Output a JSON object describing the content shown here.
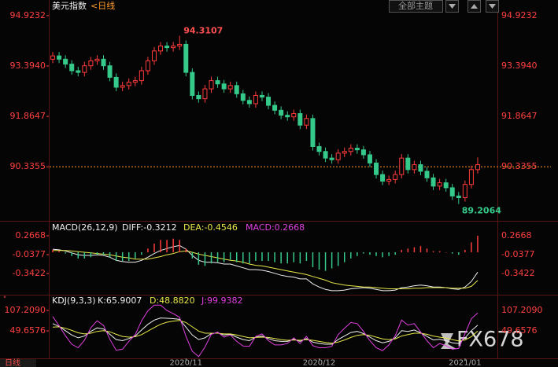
{
  "chart_data": [
    {
      "type": "candlestick",
      "title": "美元指数",
      "subtitle": "<日线",
      "open": [
        93.6,
        93.7,
        93.6,
        93.45,
        93.25,
        93.2,
        93.4,
        93.55,
        93.6,
        93.4,
        93.05,
        92.75,
        92.8,
        92.9,
        92.95,
        93.25,
        93.55,
        93.85,
        94.0,
        93.95,
        94.0,
        94.05,
        93.2,
        92.5,
        92.4,
        92.7,
        92.95,
        92.85,
        92.7,
        92.8,
        92.55,
        92.35,
        92.25,
        92.5,
        92.45,
        92.2,
        92.05,
        91.9,
        91.85,
        91.95,
        91.6,
        91.8,
        90.95,
        90.8,
        90.6,
        90.55,
        90.75,
        90.8,
        90.9,
        90.85,
        90.7,
        90.45,
        90.1,
        89.9,
        89.95,
        90.1,
        90.6,
        90.25,
        90.4,
        90.2,
        90.0,
        89.75,
        89.85,
        89.7,
        89.45,
        89.4,
        89.8,
        90.25
      ],
      "high": [
        93.82,
        93.82,
        93.72,
        93.57,
        93.37,
        93.52,
        93.67,
        93.72,
        93.72,
        93.52,
        93.17,
        92.92,
        93.02,
        93.07,
        93.37,
        93.67,
        93.97,
        94.12,
        94.12,
        94.12,
        94.3107,
        94.17,
        93.32,
        92.62,
        92.82,
        93.07,
        93.07,
        92.97,
        92.92,
        92.92,
        92.67,
        92.47,
        92.62,
        92.62,
        92.57,
        92.32,
        92.17,
        92.02,
        92.07,
        92.07,
        91.92,
        91.92,
        91.07,
        90.92,
        90.72,
        90.87,
        90.92,
        91.02,
        91.02,
        90.97,
        90.82,
        90.57,
        90.22,
        90.07,
        90.22,
        90.72,
        90.72,
        90.52,
        90.52,
        90.32,
        90.12,
        89.97,
        89.97,
        89.82,
        89.57,
        89.92,
        90.37,
        90.62
      ],
      "low": [
        93.48,
        93.48,
        93.33,
        93.13,
        93.08,
        93.08,
        93.28,
        93.43,
        93.28,
        92.93,
        92.63,
        92.63,
        92.68,
        92.78,
        92.83,
        93.13,
        93.43,
        93.73,
        93.83,
        93.83,
        93.88,
        93.08,
        92.38,
        92.28,
        92.28,
        92.58,
        92.73,
        92.58,
        92.58,
        92.43,
        92.23,
        92.13,
        92.13,
        92.33,
        92.08,
        91.93,
        91.78,
        91.73,
        91.73,
        91.48,
        91.48,
        90.83,
        90.68,
        90.48,
        90.43,
        90.43,
        90.63,
        90.68,
        90.73,
        90.58,
        90.33,
        89.98,
        89.78,
        89.78,
        89.83,
        89.98,
        90.13,
        90.13,
        90.08,
        89.88,
        89.63,
        89.63,
        89.58,
        89.33,
        89.2064,
        89.28,
        89.68,
        90.13
      ],
      "close": [
        93.7,
        93.6,
        93.45,
        93.25,
        93.2,
        93.4,
        93.55,
        93.6,
        93.4,
        93.05,
        92.75,
        92.8,
        92.9,
        92.95,
        93.25,
        93.55,
        93.85,
        94.0,
        93.95,
        94.0,
        94.05,
        93.2,
        92.5,
        92.4,
        92.7,
        92.95,
        92.85,
        92.7,
        92.8,
        92.55,
        92.35,
        92.25,
        92.5,
        92.45,
        92.2,
        92.05,
        91.9,
        91.85,
        91.95,
        91.6,
        91.8,
        90.95,
        90.8,
        90.6,
        90.55,
        90.75,
        90.8,
        90.9,
        90.85,
        90.7,
        90.45,
        90.1,
        89.9,
        89.95,
        90.1,
        90.6,
        90.25,
        90.4,
        90.2,
        90.0,
        89.75,
        89.85,
        89.7,
        89.45,
        89.4,
        89.8,
        90.25,
        90.4
      ],
      "up_color": "#ff3b3b",
      "down_color": "#35c98a",
      "xlim": [
        -0.5,
        67.5
      ],
      "ylim": [
        88.72,
        95.11
      ],
      "yticks": [
        94.9232,
        {
          "value": 93.394,
          "label": "93.3940"
        },
        91.8647,
        90.3355
      ]
    },
    {
      "type": "macd",
      "title": "MACD(26,12,9)",
      "series": [
        {
          "name": "DIFF:-0.3212",
          "color": "#f0f0f0",
          "values": [
            0.05,
            0.04,
            0.02,
            -0.01,
            -0.04,
            -0.05,
            -0.05,
            -0.04,
            -0.05,
            -0.08,
            -0.13,
            -0.15,
            -0.16,
            -0.16,
            -0.13,
            -0.08,
            -0.02,
            0.03,
            0.06,
            0.09,
            0.11,
            0.05,
            -0.05,
            -0.13,
            -0.16,
            -0.16,
            -0.17,
            -0.19,
            -0.19,
            -0.22,
            -0.25,
            -0.28,
            -0.28,
            -0.29,
            -0.31,
            -0.34,
            -0.37,
            -0.39,
            -0.4,
            -0.43,
            -0.43,
            -0.51,
            -0.56,
            -0.6,
            -0.62,
            -0.62,
            -0.61,
            -0.59,
            -0.58,
            -0.57,
            -0.58,
            -0.6,
            -0.62,
            -0.62,
            -0.61,
            -0.57,
            -0.56,
            -0.54,
            -0.53,
            -0.54,
            -0.56,
            -0.56,
            -0.57,
            -0.59,
            -0.6,
            -0.56,
            -0.47,
            -0.3212
          ]
        },
        {
          "name": "DEA:-0.4546",
          "color": "#e8e84a",
          "values": [
            0.03,
            0.03,
            0.03,
            0.02,
            0.01,
            0,
            -0.01,
            -0.02,
            -0.03,
            -0.04,
            -0.06,
            -0.08,
            -0.09,
            -0.11,
            -0.11,
            -0.11,
            -0.09,
            -0.07,
            -0.04,
            -0.02,
            0.01,
            0.02,
            0,
            -0.03,
            -0.05,
            -0.07,
            -0.09,
            -0.11,
            -0.13,
            -0.14,
            -0.16,
            -0.19,
            -0.21,
            -0.22,
            -0.24,
            -0.26,
            -0.28,
            -0.3,
            -0.32,
            -0.34,
            -0.36,
            -0.39,
            -0.42,
            -0.45,
            -0.49,
            -0.51,
            -0.53,
            -0.54,
            -0.55,
            -0.56,
            -0.56,
            -0.57,
            -0.58,
            -0.59,
            -0.59,
            -0.59,
            -0.59,
            -0.58,
            -0.58,
            -0.57,
            -0.57,
            -0.57,
            -0.57,
            -0.58,
            -0.58,
            -0.58,
            -0.55,
            -0.4546
          ]
        },
        {
          "name": "MACD:0.2668",
          "color": "#e040e0",
          "up_color": "#ff3b3b",
          "down_color": "#35c98a",
          "values": [
            0.04,
            0.02,
            -0.02,
            -0.06,
            -0.1,
            -0.1,
            -0.08,
            -0.04,
            -0.04,
            -0.08,
            -0.14,
            -0.14,
            -0.14,
            -0.1,
            -0.04,
            0.06,
            0.14,
            0.2,
            0.2,
            0.22,
            0.2,
            0.06,
            -0.1,
            -0.2,
            -0.22,
            -0.18,
            -0.16,
            -0.16,
            -0.12,
            -0.16,
            -0.18,
            -0.18,
            -0.14,
            -0.14,
            -0.14,
            -0.16,
            -0.18,
            -0.18,
            -0.16,
            -0.18,
            -0.14,
            -0.24,
            -0.28,
            -0.3,
            -0.26,
            -0.22,
            -0.16,
            -0.1,
            -0.06,
            -0.02,
            -0.04,
            -0.06,
            -0.08,
            -0.06,
            -0.04,
            0.04,
            0.06,
            0.08,
            0.1,
            0.06,
            0.02,
            0.02,
            0,
            -0.02,
            -0.04,
            0.04,
            0.16,
            0.2668
          ]
        }
      ],
      "xlim": [
        -0.5,
        67.5
      ],
      "ylim": [
        -0.672,
        0.457
      ],
      "yticks": [
        0.2668,
        -0.0377,
        -0.3422
      ]
    },
    {
      "type": "line",
      "title": "KDJ(9,3,3)",
      "series": [
        {
          "name": "K:65.9007",
          "color": "#f0f0f0",
          "values": [
            70,
            62,
            50,
            38,
            30,
            35,
            48,
            58,
            55,
            40,
            25,
            22,
            28,
            35,
            52,
            68,
            80,
            86,
            85,
            84,
            82,
            60,
            38,
            25,
            30,
            42,
            44,
            38,
            40,
            32,
            25,
            22,
            32,
            35,
            28,
            22,
            20,
            20,
            26,
            20,
            28,
            18,
            14,
            12,
            12,
            25,
            35,
            45,
            48,
            42,
            32,
            22,
            16,
            20,
            30,
            50,
            48,
            52,
            44,
            34,
            24,
            26,
            22,
            16,
            14,
            30,
            50,
            65.9007
          ]
        },
        {
          "name": "D:48.8820",
          "color": "#e8e84a",
          "values": [
            60,
            61,
            57,
            51,
            44,
            41,
            43,
            48,
            50,
            47,
            40,
            34,
            32,
            33,
            39,
            49,
            59,
            68,
            74,
            77,
            79,
            73,
            61,
            49,
            43,
            43,
            43,
            41,
            41,
            38,
            34,
            30,
            31,
            32,
            31,
            28,
            25,
            23,
            24,
            23,
            25,
            23,
            20,
            17,
            15,
            18,
            24,
            31,
            37,
            39,
            37,
            32,
            27,
            25,
            27,
            35,
            39,
            43,
            43,
            40,
            35,
            32,
            29,
            25,
            21,
            24,
            33,
            48.882
          ]
        },
        {
          "name": "J:99.9382",
          "color": "#e040e0",
          "values": [
            90,
            64,
            36,
            12,
            2,
            23,
            58,
            78,
            65,
            26,
            -5,
            -2,
            20,
            39,
            78,
            106,
            122,
            122,
            107,
            98,
            88,
            34,
            -8,
            -23,
            4,
            40,
            46,
            32,
            38,
            20,
            7,
            6,
            34,
            41,
            22,
            10,
            10,
            14,
            30,
            14,
            34,
            8,
            2,
            2,
            6,
            39,
            57,
            73,
            70,
            48,
            22,
            2,
            -6,
            10,
            36,
            80,
            66,
            70,
            46,
            22,
            2,
            14,
            8,
            -2,
            0,
            42,
            84,
            99.9382
          ]
        }
      ],
      "xlim": [
        -0.5,
        67.5
      ],
      "ylim": [
        -25.6,
        144.8
      ],
      "yticks": [
        {
          "value": 107.209,
          "label": "107.2090"
        },
        49.6576
      ],
      "xticks": [
        {
          "value": 21,
          "label": "2020/11"
        },
        {
          "value": 42,
          "label": "2020/12"
        },
        {
          "value": 65,
          "label": "2021/01"
        }
      ]
    }
  ],
  "ui": {
    "theme_button": "全部主题",
    "period_tab": "日线",
    "watermark": "FX678"
  }
}
